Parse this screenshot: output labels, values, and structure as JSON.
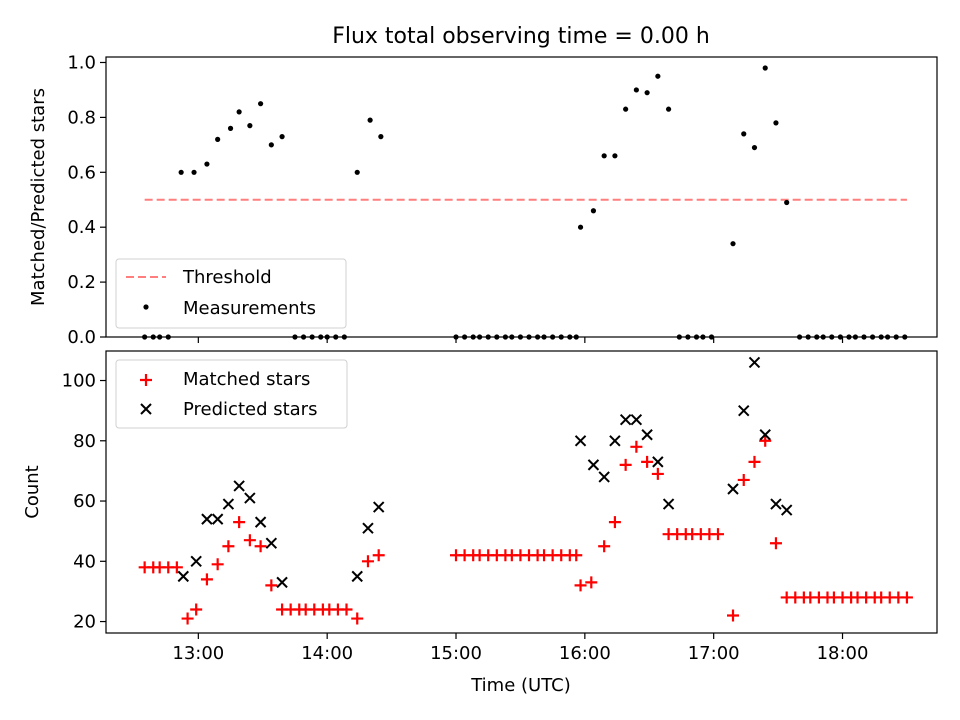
{
  "figure": {
    "title": "Flux total observing time = 0.00 h",
    "xlabel": "Time (UTC)"
  },
  "chart_data": [
    {
      "type": "scatter",
      "ylabel": "Matched/Predicted stars",
      "xlim": [
        "12:17",
        "18:44"
      ],
      "ylim": [
        0,
        1.02
      ],
      "yticks": [
        "0.0",
        "0.2",
        "0.4",
        "0.6",
        "0.8",
        "1.0"
      ],
      "xticks": [
        "13:00",
        "14:00",
        "15:00",
        "16:00",
        "17:00",
        "18:00"
      ],
      "grid": false,
      "legend": {
        "placement": "lower-left",
        "entries": [
          "Threshold",
          "Measurements"
        ]
      },
      "threshold": {
        "name": "Threshold",
        "value": 0.5,
        "x_range": [
          "12:35",
          "18:30"
        ],
        "color": "#ff7f7f"
      },
      "series": [
        {
          "name": "Measurements",
          "color": "#000000",
          "points": [
            {
              "x": "12:35",
              "y": 0
            },
            {
              "x": "12:39",
              "y": 0
            },
            {
              "x": "12:42",
              "y": 0
            },
            {
              "x": "12:46",
              "y": 0
            },
            {
              "x": "12:52",
              "y": 0.6
            },
            {
              "x": "12:58",
              "y": 0.6
            },
            {
              "x": "13:04",
              "y": 0.63
            },
            {
              "x": "13:09",
              "y": 0.72
            },
            {
              "x": "13:15",
              "y": 0.76
            },
            {
              "x": "13:19",
              "y": 0.82
            },
            {
              "x": "13:24",
              "y": 0.77
            },
            {
              "x": "13:29",
              "y": 0.85
            },
            {
              "x": "13:34",
              "y": 0.7
            },
            {
              "x": "13:39",
              "y": 0.73
            },
            {
              "x": "13:45",
              "y": 0
            },
            {
              "x": "13:49",
              "y": 0
            },
            {
              "x": "13:53",
              "y": 0
            },
            {
              "x": "13:57",
              "y": 0
            },
            {
              "x": "14:00",
              "y": 0
            },
            {
              "x": "14:04",
              "y": 0
            },
            {
              "x": "14:08",
              "y": 0
            },
            {
              "x": "14:14",
              "y": 0.6
            },
            {
              "x": "14:20",
              "y": 0.79
            },
            {
              "x": "14:25",
              "y": 0.73
            },
            {
              "x": "15:00",
              "y": 0
            },
            {
              "x": "15:04",
              "y": 0
            },
            {
              "x": "15:08",
              "y": 0
            },
            {
              "x": "15:11",
              "y": 0
            },
            {
              "x": "15:15",
              "y": 0
            },
            {
              "x": "15:19",
              "y": 0
            },
            {
              "x": "15:23",
              "y": 0
            },
            {
              "x": "15:26",
              "y": 0
            },
            {
              "x": "15:30",
              "y": 0
            },
            {
              "x": "15:34",
              "y": 0
            },
            {
              "x": "15:38",
              "y": 0
            },
            {
              "x": "15:41",
              "y": 0
            },
            {
              "x": "15:45",
              "y": 0
            },
            {
              "x": "15:49",
              "y": 0
            },
            {
              "x": "15:53",
              "y": 0
            },
            {
              "x": "15:56",
              "y": 0
            },
            {
              "x": "15:58",
              "y": 0.4
            },
            {
              "x": "16:04",
              "y": 0.46
            },
            {
              "x": "16:09",
              "y": 0.66
            },
            {
              "x": "16:14",
              "y": 0.66
            },
            {
              "x": "16:19",
              "y": 0.83
            },
            {
              "x": "16:24",
              "y": 0.9
            },
            {
              "x": "16:29",
              "y": 0.89
            },
            {
              "x": "16:34",
              "y": 0.95
            },
            {
              "x": "16:39",
              "y": 0.83
            },
            {
              "x": "16:44",
              "y": 0
            },
            {
              "x": "16:48",
              "y": 0
            },
            {
              "x": "16:52",
              "y": 0
            },
            {
              "x": "16:55",
              "y": 0
            },
            {
              "x": "16:59",
              "y": 0
            },
            {
              "x": "17:09",
              "y": 0.34
            },
            {
              "x": "17:14",
              "y": 0.74
            },
            {
              "x": "17:19",
              "y": 0.69
            },
            {
              "x": "17:24",
              "y": 0.98
            },
            {
              "x": "17:29",
              "y": 0.78
            },
            {
              "x": "17:34",
              "y": 0.49
            },
            {
              "x": "17:40",
              "y": 0
            },
            {
              "x": "17:44",
              "y": 0
            },
            {
              "x": "17:48",
              "y": 0
            },
            {
              "x": "17:51",
              "y": 0
            },
            {
              "x": "17:55",
              "y": 0
            },
            {
              "x": "17:59",
              "y": 0
            },
            {
              "x": "18:03",
              "y": 0
            },
            {
              "x": "18:06",
              "y": 0
            },
            {
              "x": "18:10",
              "y": 0
            },
            {
              "x": "18:14",
              "y": 0
            },
            {
              "x": "18:18",
              "y": 0
            },
            {
              "x": "18:21",
              "y": 0
            },
            {
              "x": "18:25",
              "y": 0
            },
            {
              "x": "18:29",
              "y": 0
            }
          ]
        }
      ]
    },
    {
      "type": "scatter",
      "ylabel": "Count",
      "xlabel": "Time (UTC)",
      "xlim": [
        "12:17",
        "18:44"
      ],
      "ylim": [
        16.2,
        109.8
      ],
      "yticks": [
        "20",
        "40",
        "60",
        "80",
        "100"
      ],
      "xticks": [
        "13:00",
        "14:00",
        "15:00",
        "16:00",
        "17:00",
        "18:00"
      ],
      "grid": false,
      "legend": {
        "placement": "top-left",
        "entries": [
          "Matched stars",
          "Predicted stars"
        ]
      },
      "series": [
        {
          "name": "Matched stars",
          "marker": "plus",
          "color": "#ff0000",
          "points": [
            {
              "x": "12:35",
              "y": 38
            },
            {
              "x": "12:39",
              "y": 38
            },
            {
              "x": "12:42",
              "y": 38
            },
            {
              "x": "12:46",
              "y": 38
            },
            {
              "x": "12:50",
              "y": 38
            },
            {
              "x": "12:55",
              "y": 21
            },
            {
              "x": "12:59",
              "y": 24
            },
            {
              "x": "13:04",
              "y": 34
            },
            {
              "x": "13:09",
              "y": 39
            },
            {
              "x": "13:14",
              "y": 45
            },
            {
              "x": "13:19",
              "y": 53
            },
            {
              "x": "13:24",
              "y": 47
            },
            {
              "x": "13:29",
              "y": 45
            },
            {
              "x": "13:34",
              "y": 32
            },
            {
              "x": "13:39",
              "y": 24
            },
            {
              "x": "13:43",
              "y": 24
            },
            {
              "x": "13:47",
              "y": 24
            },
            {
              "x": "13:50",
              "y": 24
            },
            {
              "x": "13:54",
              "y": 24
            },
            {
              "x": "13:58",
              "y": 24
            },
            {
              "x": "14:01",
              "y": 24
            },
            {
              "x": "14:05",
              "y": 24
            },
            {
              "x": "14:09",
              "y": 24
            },
            {
              "x": "14:14",
              "y": 21
            },
            {
              "x": "14:19",
              "y": 40
            },
            {
              "x": "14:24",
              "y": 42
            },
            {
              "x": "15:00",
              "y": 42
            },
            {
              "x": "15:04",
              "y": 42
            },
            {
              "x": "15:08",
              "y": 42
            },
            {
              "x": "15:11",
              "y": 42
            },
            {
              "x": "15:15",
              "y": 42
            },
            {
              "x": "15:19",
              "y": 42
            },
            {
              "x": "15:23",
              "y": 42
            },
            {
              "x": "15:26",
              "y": 42
            },
            {
              "x": "15:30",
              "y": 42
            },
            {
              "x": "15:34",
              "y": 42
            },
            {
              "x": "15:38",
              "y": 42
            },
            {
              "x": "15:41",
              "y": 42
            },
            {
              "x": "15:45",
              "y": 42
            },
            {
              "x": "15:49",
              "y": 42
            },
            {
              "x": "15:53",
              "y": 42
            },
            {
              "x": "15:56",
              "y": 42
            },
            {
              "x": "15:58",
              "y": 32
            },
            {
              "x": "16:03",
              "y": 33
            },
            {
              "x": "16:09",
              "y": 45
            },
            {
              "x": "16:14",
              "y": 53
            },
            {
              "x": "16:19",
              "y": 72
            },
            {
              "x": "16:24",
              "y": 78
            },
            {
              "x": "16:29",
              "y": 73
            },
            {
              "x": "16:34",
              "y": 69
            },
            {
              "x": "16:39",
              "y": 49
            },
            {
              "x": "16:43",
              "y": 49
            },
            {
              "x": "16:47",
              "y": 49
            },
            {
              "x": "16:50",
              "y": 49
            },
            {
              "x": "16:54",
              "y": 49
            },
            {
              "x": "16:58",
              "y": 49
            },
            {
              "x": "17:02",
              "y": 49
            },
            {
              "x": "17:09",
              "y": 22
            },
            {
              "x": "17:14",
              "y": 67
            },
            {
              "x": "17:19",
              "y": 73
            },
            {
              "x": "17:24",
              "y": 80
            },
            {
              "x": "17:29",
              "y": 46
            },
            {
              "x": "17:34",
              "y": 28
            },
            {
              "x": "17:38",
              "y": 28
            },
            {
              "x": "17:42",
              "y": 28
            },
            {
              "x": "17:45",
              "y": 28
            },
            {
              "x": "17:49",
              "y": 28
            },
            {
              "x": "17:53",
              "y": 28
            },
            {
              "x": "17:56",
              "y": 28
            },
            {
              "x": "18:00",
              "y": 28
            },
            {
              "x": "18:04",
              "y": 28
            },
            {
              "x": "18:07",
              "y": 28
            },
            {
              "x": "18:11",
              "y": 28
            },
            {
              "x": "18:15",
              "y": 28
            },
            {
              "x": "18:18",
              "y": 28
            },
            {
              "x": "18:22",
              "y": 28
            },
            {
              "x": "18:26",
              "y": 28
            },
            {
              "x": "18:30",
              "y": 28
            }
          ]
        },
        {
          "name": "Predicted stars",
          "marker": "x",
          "color": "#000000",
          "points": [
            {
              "x": "12:53",
              "y": 35
            },
            {
              "x": "12:59",
              "y": 40
            },
            {
              "x": "13:04",
              "y": 54
            },
            {
              "x": "13:09",
              "y": 54
            },
            {
              "x": "13:14",
              "y": 59
            },
            {
              "x": "13:19",
              "y": 65
            },
            {
              "x": "13:24",
              "y": 61
            },
            {
              "x": "13:29",
              "y": 53
            },
            {
              "x": "13:34",
              "y": 46
            },
            {
              "x": "13:39",
              "y": 33
            },
            {
              "x": "14:14",
              "y": 35
            },
            {
              "x": "14:19",
              "y": 51
            },
            {
              "x": "14:24",
              "y": 58
            },
            {
              "x": "15:58",
              "y": 80
            },
            {
              "x": "16:04",
              "y": 72
            },
            {
              "x": "16:09",
              "y": 68
            },
            {
              "x": "16:14",
              "y": 80
            },
            {
              "x": "16:19",
              "y": 87
            },
            {
              "x": "16:24",
              "y": 87
            },
            {
              "x": "16:29",
              "y": 82
            },
            {
              "x": "16:34",
              "y": 73
            },
            {
              "x": "16:39",
              "y": 59
            },
            {
              "x": "17:09",
              "y": 64
            },
            {
              "x": "17:14",
              "y": 90
            },
            {
              "x": "17:19",
              "y": 106
            },
            {
              "x": "17:24",
              "y": 82
            },
            {
              "x": "17:29",
              "y": 59
            },
            {
              "x": "17:34",
              "y": 57
            }
          ]
        }
      ]
    }
  ]
}
